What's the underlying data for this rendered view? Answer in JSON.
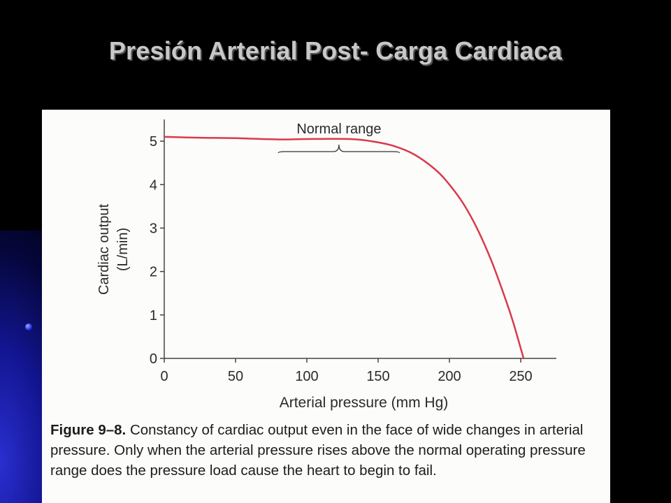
{
  "slide": {
    "title": "Presión Arterial Post- Carga Cardiaca"
  },
  "figure": {
    "label": "Figure 9–8.",
    "caption": "Constancy of cardiac output even in the face of wide changes in arterial pressure. Only when the arterial pressure rises above the normal operating pressure range does the pressure load cause the heart to begin to fail."
  },
  "chart_data": {
    "type": "line",
    "xlabel": "Arterial pressure (mm Hg)",
    "ylabel_line1": "Cardiac output",
    "ylabel_line2": "(L/min)",
    "xlim": [
      0,
      275
    ],
    "ylim": [
      0,
      5.5
    ],
    "x_ticks": [
      0,
      50,
      100,
      150,
      200,
      250
    ],
    "y_ticks": [
      0,
      1,
      2,
      3,
      4,
      5
    ],
    "line_color": "#d93a4a",
    "grid": false,
    "series": [
      {
        "points": [
          [
            0,
            5.1
          ],
          [
            25,
            5.08
          ],
          [
            50,
            5.07
          ],
          [
            80,
            5.04
          ],
          [
            100,
            5.05
          ],
          [
            130,
            5.05
          ],
          [
            145,
            5.0
          ],
          [
            160,
            4.9
          ],
          [
            175,
            4.7
          ],
          [
            190,
            4.35
          ],
          [
            200,
            4.0
          ],
          [
            210,
            3.55
          ],
          [
            220,
            2.95
          ],
          [
            230,
            2.2
          ],
          [
            240,
            1.3
          ],
          [
            245,
            0.8
          ],
          [
            252,
            0.0
          ]
        ]
      }
    ],
    "annotations": [
      {
        "text": "Normal range",
        "x_start": 80,
        "x_end": 165
      }
    ]
  }
}
